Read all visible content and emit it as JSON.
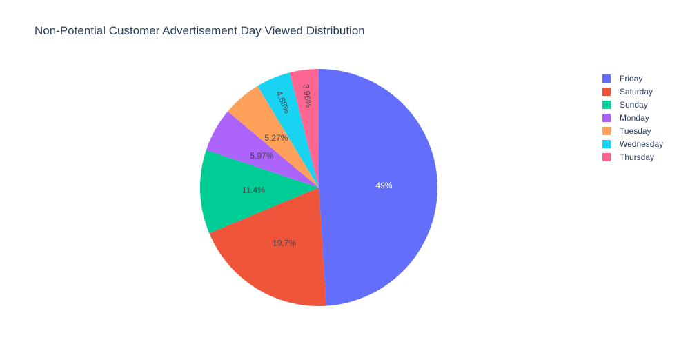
{
  "chart_data": {
    "type": "pie",
    "title": "Non-Potential Customer Advertisement Day Viewed Distribution",
    "categories": [
      "Friday",
      "Saturday",
      "Sunday",
      "Monday",
      "Tuesday",
      "Wednesday",
      "Thursday"
    ],
    "values": [
      49,
      19.7,
      11.4,
      5.97,
      5.27,
      4.68,
      3.96
    ],
    "labels": [
      "49%",
      "19.7%",
      "11.4%",
      "5.97%",
      "5.27%",
      "4.68%",
      "3.96%"
    ],
    "colors": [
      "#636efa",
      "#ef553b",
      "#00cc96",
      "#ab63fa",
      "#ffa15a",
      "#19d3f3",
      "#ff6692"
    ],
    "label_colors": [
      "#ffffff",
      "#444444",
      "#444444",
      "#444444",
      "#444444",
      "#444444",
      "#444444"
    ],
    "direction": "clockwise",
    "start_angle": "12 o'clock",
    "legend_position": "top-right"
  }
}
